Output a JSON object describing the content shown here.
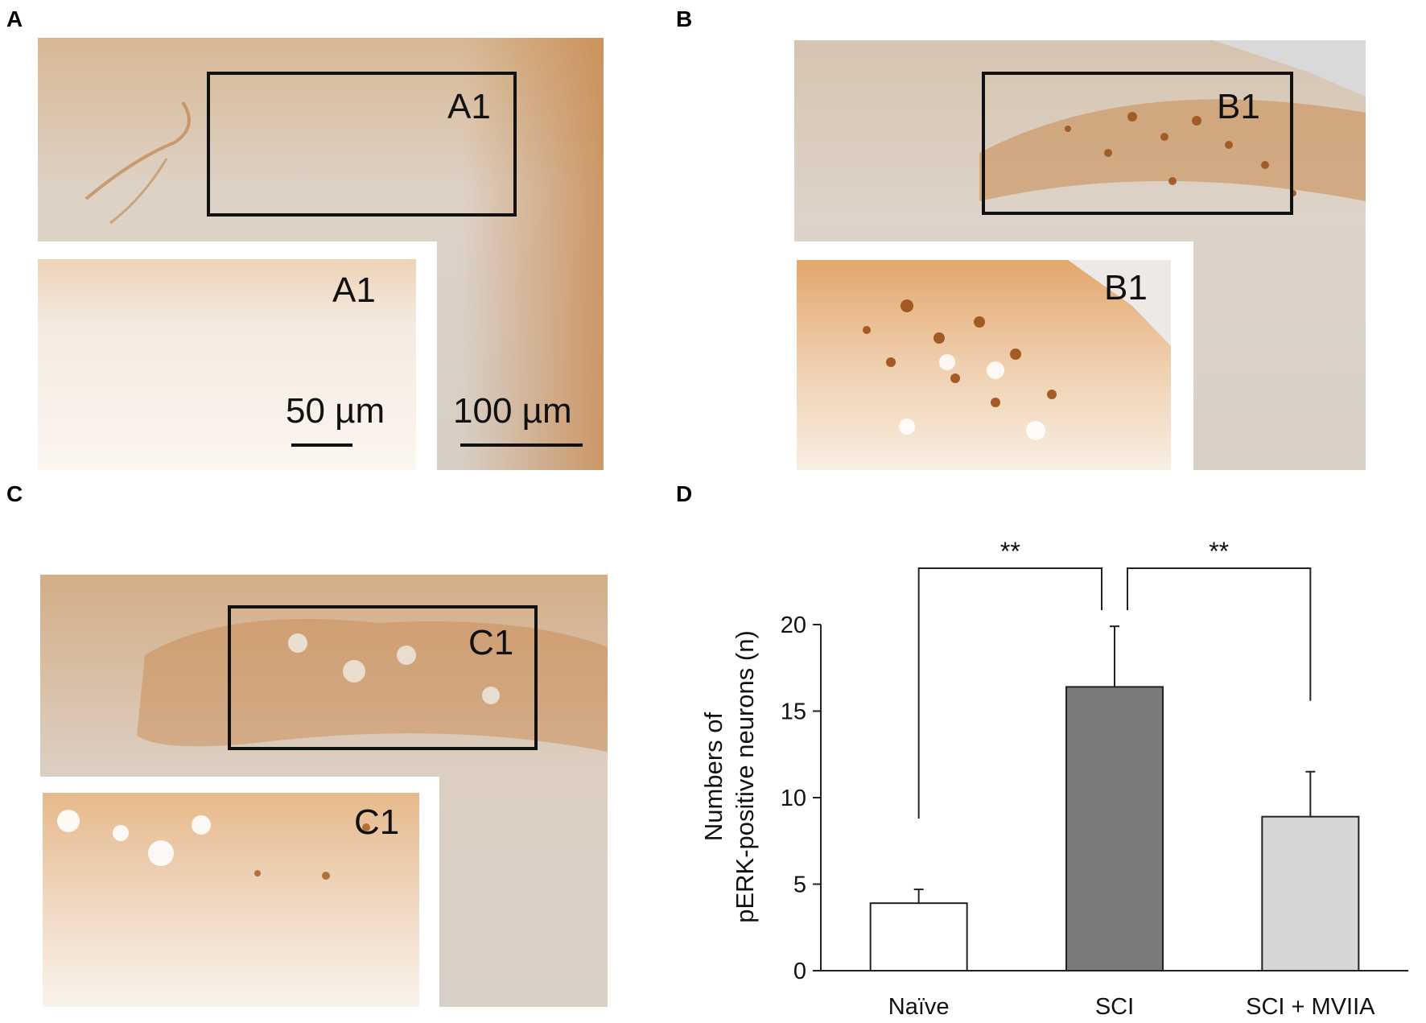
{
  "panels": {
    "A": {
      "letter": "A",
      "roi": "A1",
      "inset_label": "A1",
      "scale_small": "50 µm",
      "scale_large": "100 µm"
    },
    "B": {
      "letter": "B",
      "roi": "B1",
      "inset_label": "B1"
    },
    "C": {
      "letter": "C",
      "roi": "C1",
      "inset_label": "C1"
    },
    "D": {
      "letter": "D"
    }
  },
  "colors": {
    "tissue_bg": "#d9cfc3",
    "stain": "#c07a3a",
    "inset_bg": "#f6ece1",
    "bar_naive": "#ffffff",
    "bar_sci": "#7a7a7a",
    "bar_sci_mviia": "#d6d6d6"
  },
  "chart_data": {
    "type": "bar",
    "categories": [
      "Naïve",
      "SCI",
      "SCI + MVIIA"
    ],
    "values": [
      3.9,
      16.4,
      8.9
    ],
    "errors": [
      0.8,
      3.5,
      2.6
    ],
    "ylabel_line1": "Numbers of",
    "ylabel_line2": "pERK-positive neurons (n)",
    "ylim": [
      0,
      20
    ],
    "yticks": [
      0,
      5,
      10,
      15,
      20
    ],
    "significance": [
      {
        "from": 0,
        "to": 1,
        "label": "**"
      },
      {
        "from": 1,
        "to": 2,
        "label": "**"
      }
    ]
  }
}
